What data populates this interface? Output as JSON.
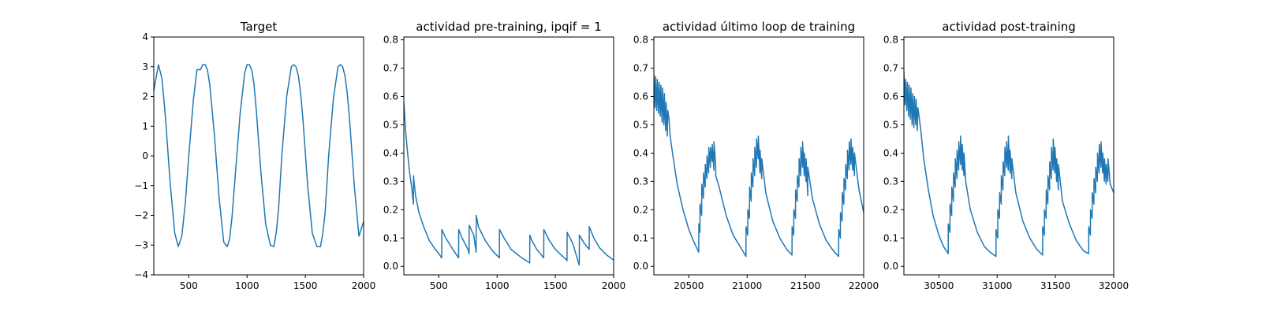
{
  "chart_data": [
    {
      "type": "line",
      "title": "Target",
      "xlabel": "",
      "ylabel": "",
      "xlim": [
        200,
        2000
      ],
      "ylim": [
        -4,
        4
      ],
      "xticks": [
        500,
        1000,
        1500,
        2000
      ],
      "yticks": [
        -4,
        -3,
        -2,
        -1,
        0,
        1,
        2,
        3,
        4
      ],
      "xtick_labels": [
        "500",
        "1000",
        "1500",
        "2000"
      ],
      "ytick_labels": [
        "−4",
        "−3",
        "−2",
        "−1",
        "0",
        "1",
        "2",
        "3",
        "4"
      ],
      "grid": false,
      "series_color": "#1f77b4",
      "series": [
        {
          "x": [
            200,
            240,
            270,
            300,
            340,
            380,
            410,
            440,
            470,
            500,
            540,
            570,
            600,
            620,
            640,
            660,
            680,
            720,
            760,
            800,
            830,
            850,
            870,
            900,
            940,
            980,
            1000,
            1020,
            1040,
            1060,
            1080,
            1120,
            1160,
            1200,
            1230,
            1250,
            1270,
            1300,
            1340,
            1380,
            1400,
            1420,
            1440,
            1460,
            1480,
            1520,
            1560,
            1600,
            1630,
            1650,
            1670,
            1700,
            1740,
            1780,
            1800,
            1820,
            1840,
            1860,
            1880,
            1920,
            1960,
            2000
          ],
          "y": [
            2.2,
            3.07,
            2.6,
            1.3,
            -0.9,
            -2.6,
            -3.05,
            -2.7,
            -1.6,
            0.0,
            1.9,
            2.9,
            2.9,
            3.07,
            3.07,
            2.9,
            2.4,
            0.7,
            -1.4,
            -2.9,
            -3.05,
            -2.8,
            -2.1,
            -0.6,
            1.4,
            2.8,
            3.07,
            3.07,
            2.9,
            2.4,
            1.5,
            -0.6,
            -2.3,
            -3.0,
            -3.05,
            -2.6,
            -1.8,
            0.1,
            2.0,
            3.0,
            3.07,
            3.0,
            2.7,
            2.1,
            1.2,
            -1.0,
            -2.6,
            -3.05,
            -3.05,
            -2.6,
            -1.9,
            0.0,
            1.9,
            3.0,
            3.07,
            3.0,
            2.7,
            2.1,
            1.2,
            -1.0,
            -2.7,
            -2.2
          ]
        }
      ]
    },
    {
      "type": "line",
      "title": "actividad pre-training, ipqif = 1",
      "xlabel": "",
      "ylabel": "",
      "xlim": [
        200,
        2000
      ],
      "ylim": [
        -0.03,
        0.81
      ],
      "xticks": [
        500,
        1000,
        1500,
        2000
      ],
      "yticks": [
        0.0,
        0.1,
        0.2,
        0.3,
        0.4,
        0.5,
        0.6,
        0.7,
        0.8
      ],
      "xtick_labels": [
        "500",
        "1000",
        "1500",
        "2000"
      ],
      "ytick_labels": [
        "0.0",
        "0.1",
        "0.2",
        "0.3",
        "0.4",
        "0.5",
        "0.6",
        "0.7",
        "0.8"
      ],
      "grid": false,
      "series_color": "#1f77b4",
      "series": [
        {
          "x": [
            200,
            215,
            230,
            250,
            270,
            282,
            283,
            300,
            330,
            370,
            420,
            470,
            500,
            525,
            526,
            560,
            620,
            670,
            671,
            700,
            750,
            760,
            761,
            800,
            820,
            821,
            840,
            900,
            960,
            1020,
            1021,
            1060,
            1120,
            1180,
            1230,
            1280,
            1281,
            1300,
            1340,
            1400,
            1401,
            1450,
            1500,
            1550,
            1590,
            1600,
            1601,
            1650,
            1700,
            1705,
            1706,
            1750,
            1790,
            1791,
            1830,
            1880,
            1940,
            2000
          ],
          "y": [
            0.58,
            0.48,
            0.41,
            0.33,
            0.27,
            0.22,
            0.32,
            0.25,
            0.19,
            0.14,
            0.09,
            0.06,
            0.045,
            0.03,
            0.13,
            0.1,
            0.06,
            0.03,
            0.13,
            0.1,
            0.06,
            0.045,
            0.145,
            0.11,
            0.05,
            0.18,
            0.14,
            0.09,
            0.055,
            0.03,
            0.13,
            0.1,
            0.06,
            0.04,
            0.025,
            0.012,
            0.11,
            0.09,
            0.06,
            0.03,
            0.13,
            0.09,
            0.06,
            0.04,
            0.025,
            0.02,
            0.12,
            0.08,
            0.01,
            0.005,
            0.11,
            0.08,
            0.06,
            0.14,
            0.1,
            0.065,
            0.04,
            0.022
          ]
        }
      ]
    },
    {
      "type": "line",
      "title": "actividad último loop de training",
      "xlabel": "",
      "ylabel": "",
      "xlim": [
        20200,
        22000
      ],
      "ylim": [
        -0.03,
        0.81
      ],
      "xticks": [
        20500,
        21000,
        21500,
        22000
      ],
      "yticks": [
        0.0,
        0.1,
        0.2,
        0.3,
        0.4,
        0.5,
        0.6,
        0.7,
        0.8
      ],
      "xtick_labels": [
        "20500",
        "21000",
        "21500",
        "22000"
      ],
      "ytick_labels": [
        "0.0",
        "0.1",
        "0.2",
        "0.3",
        "0.4",
        "0.5",
        "0.6",
        "0.7",
        "0.8"
      ],
      "grid": false,
      "series_color": "#1f77b4",
      "series": [
        {
          "x": [
            20200,
            20210,
            20215,
            20225,
            20230,
            20240,
            20245,
            20255,
            20260,
            20270,
            20275,
            20285,
            20290,
            20300,
            20305,
            20315,
            20320,
            20330,
            20340,
            20360,
            20400,
            20450,
            20500,
            20550,
            20585,
            20586,
            20595,
            20596,
            20610,
            20611,
            20625,
            20626,
            20640,
            20641,
            20655,
            20656,
            20670,
            20671,
            20685,
            20686,
            20700,
            20701,
            20715,
            20716,
            20730,
            20731,
            20760,
            20820,
            20880,
            20940,
            20990,
            20991,
            21005,
            21006,
            21020,
            21021,
            21035,
            21036,
            21050,
            21051,
            21065,
            21066,
            21080,
            21081,
            21095,
            21096,
            21110,
            21111,
            21125,
            21126,
            21160,
            21220,
            21280,
            21340,
            21385,
            21386,
            21400,
            21401,
            21415,
            21416,
            21430,
            21431,
            21445,
            21446,
            21460,
            21461,
            21475,
            21476,
            21490,
            21491,
            21505,
            21506,
            21520,
            21521,
            21560,
            21620,
            21680,
            21740,
            21785,
            21786,
            21800,
            21801,
            21815,
            21816,
            21830,
            21831,
            21845,
            21846,
            21860,
            21861,
            21875,
            21876,
            21890,
            21891,
            21905,
            21906,
            21920,
            21921,
            21960,
            22000
          ],
          "y": [
            0.68,
            0.56,
            0.67,
            0.55,
            0.66,
            0.54,
            0.65,
            0.53,
            0.64,
            0.51,
            0.63,
            0.5,
            0.61,
            0.48,
            0.58,
            0.46,
            0.55,
            0.52,
            0.46,
            0.4,
            0.29,
            0.2,
            0.13,
            0.08,
            0.05,
            0.15,
            0.12,
            0.22,
            0.18,
            0.29,
            0.24,
            0.33,
            0.28,
            0.36,
            0.31,
            0.39,
            0.33,
            0.42,
            0.35,
            0.42,
            0.37,
            0.43,
            0.34,
            0.44,
            0.36,
            0.32,
            0.28,
            0.18,
            0.11,
            0.07,
            0.035,
            0.14,
            0.11,
            0.2,
            0.17,
            0.28,
            0.23,
            0.33,
            0.28,
            0.38,
            0.32,
            0.42,
            0.35,
            0.45,
            0.38,
            0.46,
            0.33,
            0.41,
            0.31,
            0.38,
            0.26,
            0.16,
            0.1,
            0.06,
            0.04,
            0.14,
            0.11,
            0.2,
            0.17,
            0.27,
            0.23,
            0.32,
            0.28,
            0.38,
            0.32,
            0.42,
            0.35,
            0.44,
            0.32,
            0.4,
            0.3,
            0.38,
            0.25,
            0.35,
            0.24,
            0.15,
            0.09,
            0.055,
            0.035,
            0.13,
            0.1,
            0.19,
            0.16,
            0.26,
            0.22,
            0.31,
            0.27,
            0.36,
            0.31,
            0.41,
            0.34,
            0.44,
            0.36,
            0.45,
            0.34,
            0.42,
            0.32,
            0.4,
            0.27,
            0.19
          ]
        }
      ]
    },
    {
      "type": "line",
      "title": "actividad post-training",
      "xlabel": "",
      "ylabel": "",
      "xlim": [
        30200,
        32000
      ],
      "ylim": [
        -0.03,
        0.81
      ],
      "xticks": [
        30500,
        31000,
        31500,
        32000
      ],
      "yticks": [
        0.0,
        0.1,
        0.2,
        0.3,
        0.4,
        0.5,
        0.6,
        0.7,
        0.8
      ],
      "xtick_labels": [
        "30500",
        "31000",
        "31500",
        "32000"
      ],
      "ytick_labels": [
        "0.0",
        "0.1",
        "0.2",
        "0.3",
        "0.4",
        "0.5",
        "0.6",
        "0.7",
        "0.8"
      ],
      "grid": false,
      "series_color": "#1f77b4",
      "series": [
        {
          "x": [
            30200,
            30210,
            30215,
            30225,
            30230,
            30240,
            30245,
            30255,
            30260,
            30270,
            30275,
            30285,
            30290,
            30300,
            30305,
            30315,
            30320,
            30330,
            30345,
            30370,
            30410,
            30450,
            30500,
            30540,
            30580,
            30581,
            30595,
            30596,
            30610,
            30611,
            30625,
            30626,
            30640,
            30641,
            30655,
            30656,
            30670,
            30671,
            30685,
            30686,
            30700,
            30701,
            30715,
            30716,
            30730,
            30770,
            30830,
            30890,
            30940,
            30990,
            30991,
            31005,
            31006,
            31020,
            31021,
            31035,
            31036,
            31050,
            31051,
            31065,
            31066,
            31080,
            31081,
            31095,
            31096,
            31110,
            31111,
            31125,
            31126,
            31160,
            31220,
            31280,
            31340,
            31390,
            31391,
            31405,
            31406,
            31420,
            31421,
            31435,
            31436,
            31450,
            31451,
            31465,
            31466,
            31480,
            31481,
            31495,
            31496,
            31510,
            31511,
            31525,
            31526,
            31560,
            31620,
            31680,
            31740,
            31785,
            31786,
            31800,
            31801,
            31815,
            31816,
            31830,
            31831,
            31845,
            31846,
            31860,
            31861,
            31875,
            31876,
            31890,
            31891,
            31905,
            31906,
            31920,
            31921,
            31935,
            31936,
            31950,
            31951,
            31970,
            32000
          ],
          "y": [
            0.69,
            0.57,
            0.66,
            0.55,
            0.65,
            0.53,
            0.64,
            0.52,
            0.63,
            0.5,
            0.61,
            0.49,
            0.6,
            0.5,
            0.59,
            0.48,
            0.56,
            0.53,
            0.48,
            0.38,
            0.27,
            0.18,
            0.11,
            0.07,
            0.045,
            0.15,
            0.12,
            0.22,
            0.18,
            0.28,
            0.23,
            0.33,
            0.28,
            0.38,
            0.31,
            0.41,
            0.34,
            0.44,
            0.36,
            0.46,
            0.34,
            0.43,
            0.32,
            0.4,
            0.3,
            0.2,
            0.12,
            0.07,
            0.05,
            0.035,
            0.13,
            0.1,
            0.2,
            0.17,
            0.26,
            0.22,
            0.32,
            0.27,
            0.37,
            0.32,
            0.42,
            0.35,
            0.44,
            0.34,
            0.46,
            0.33,
            0.41,
            0.31,
            0.38,
            0.26,
            0.16,
            0.1,
            0.06,
            0.04,
            0.14,
            0.11,
            0.2,
            0.17,
            0.27,
            0.22,
            0.32,
            0.27,
            0.37,
            0.31,
            0.42,
            0.34,
            0.45,
            0.33,
            0.42,
            0.3,
            0.38,
            0.27,
            0.36,
            0.23,
            0.15,
            0.09,
            0.055,
            0.045,
            0.14,
            0.11,
            0.2,
            0.17,
            0.26,
            0.22,
            0.31,
            0.26,
            0.35,
            0.3,
            0.4,
            0.33,
            0.43,
            0.35,
            0.44,
            0.33,
            0.4,
            0.3,
            0.38,
            0.29,
            0.36,
            0.3,
            0.38,
            0.29,
            0.26
          ]
        }
      ]
    }
  ]
}
